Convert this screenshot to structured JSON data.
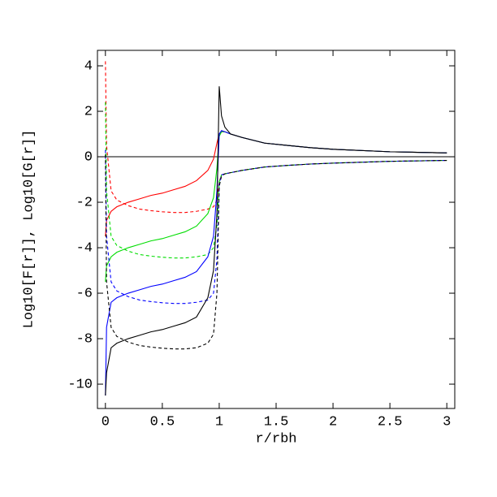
{
  "chart_data": {
    "type": "line",
    "xlabel": "r/rbh",
    "ylabel": "Log10[F[r]], Log10[G[r]]",
    "xlim": [
      -0.07,
      3.07
    ],
    "ylim": [
      -11.07,
      4.68
    ],
    "xticks": [
      0,
      0.5,
      1,
      1.5,
      2,
      2.5,
      3
    ],
    "yticks": [
      -10,
      -8,
      -6,
      -4,
      -2,
      0,
      2,
      4
    ],
    "axhline": 0,
    "x": [
      0,
      0.01,
      0.05,
      0.1,
      0.2,
      0.3,
      0.4,
      0.5,
      0.6,
      0.7,
      0.8,
      0.9,
      0.95,
      0.98,
      1.0,
      1.02,
      1.05,
      1.1,
      1.2,
      1.4,
      1.6,
      1.8,
      2.0,
      2.5,
      3.0
    ],
    "series": [
      {
        "color": "#ff0000",
        "dashed": false,
        "values": [
          -3.5,
          -2.8,
          -2.4,
          -2.2,
          -2.0,
          -1.85,
          -1.7,
          -1.6,
          -1.45,
          -1.3,
          -1.05,
          -0.6,
          -0.1,
          0.6,
          1.0,
          1.1,
          1.1,
          1.0,
          0.85,
          0.6,
          0.5,
          0.4,
          0.33,
          0.22,
          0.17
        ]
      },
      {
        "color": "#ff0000",
        "dashed": true,
        "values": [
          4.2,
          0.5,
          -1.5,
          -1.9,
          -2.15,
          -2.3,
          -2.37,
          -2.42,
          -2.45,
          -2.45,
          -2.4,
          -2.3,
          -2.2,
          -1.9,
          -1.1,
          -0.8,
          -0.75,
          -0.7,
          -0.6,
          -0.45,
          -0.38,
          -0.32,
          -0.28,
          -0.2,
          -0.16
        ]
      },
      {
        "color": "#00dd00",
        "dashed": false,
        "values": [
          -5.5,
          -4.8,
          -4.4,
          -4.2,
          -4.0,
          -3.85,
          -3.7,
          -3.6,
          -3.45,
          -3.3,
          -3.05,
          -2.5,
          -1.8,
          -0.5,
          0.9,
          1.1,
          1.1,
          1.0,
          0.85,
          0.6,
          0.5,
          0.4,
          0.33,
          0.22,
          0.17
        ]
      },
      {
        "color": "#00dd00",
        "dashed": true,
        "values": [
          2.4,
          -1.5,
          -3.5,
          -3.9,
          -4.15,
          -4.3,
          -4.37,
          -4.42,
          -4.45,
          -4.45,
          -4.4,
          -4.3,
          -4.0,
          -3.0,
          -1.1,
          -0.8,
          -0.75,
          -0.7,
          -0.6,
          -0.45,
          -0.38,
          -0.32,
          -0.28,
          -0.2,
          -0.16
        ]
      },
      {
        "color": "#0000ff",
        "dashed": false,
        "values": [
          -10.5,
          -7.5,
          -6.4,
          -6.2,
          -6.0,
          -5.85,
          -5.7,
          -5.6,
          -5.45,
          -5.3,
          -5.05,
          -4.4,
          -3.5,
          -1.5,
          1.0,
          1.15,
          1.1,
          1.0,
          0.85,
          0.6,
          0.5,
          0.4,
          0.33,
          0.22,
          0.17
        ]
      },
      {
        "color": "#0000ff",
        "dashed": true,
        "values": [
          0.3,
          -3.5,
          -5.5,
          -5.9,
          -6.15,
          -6.3,
          -6.37,
          -6.42,
          -6.45,
          -6.45,
          -6.4,
          -6.3,
          -6.0,
          -4.5,
          -1.2,
          -0.8,
          -0.75,
          -0.7,
          -0.6,
          -0.45,
          -0.38,
          -0.32,
          -0.28,
          -0.2,
          -0.16
        ]
      },
      {
        "color": "#000000",
        "dashed": false,
        "values": [
          -10.5,
          -9.5,
          -8.4,
          -8.2,
          -8.0,
          -7.85,
          -7.7,
          -7.6,
          -7.45,
          -7.3,
          -7.05,
          -6.2,
          -5.0,
          -2.5,
          3.1,
          1.8,
          1.3,
          1.0,
          0.85,
          0.6,
          0.5,
          0.4,
          0.33,
          0.22,
          0.17
        ]
      },
      {
        "color": "#000000",
        "dashed": true,
        "values": [
          0.1,
          -5.5,
          -7.5,
          -7.9,
          -8.15,
          -8.3,
          -8.37,
          -8.42,
          -8.45,
          -8.45,
          -8.4,
          -8.2,
          -7.8,
          -6.0,
          -1.3,
          -0.85,
          -0.75,
          -0.7,
          -0.6,
          -0.45,
          -0.38,
          -0.32,
          -0.28,
          -0.2,
          -0.16
        ]
      }
    ]
  }
}
